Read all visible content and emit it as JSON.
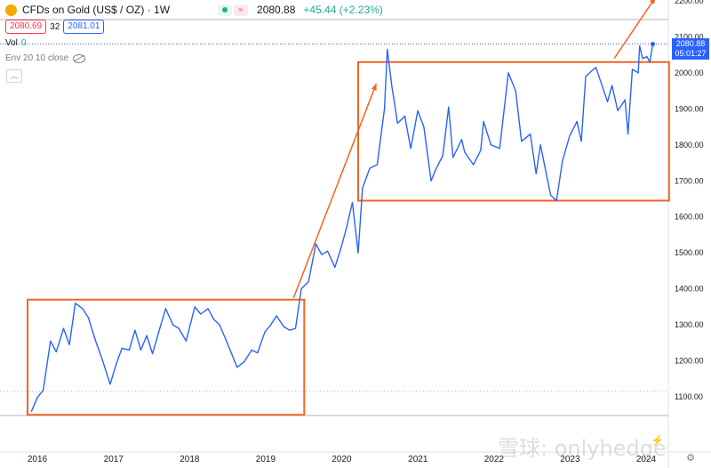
{
  "header": {
    "symbol": "CFDs on Gold (US$ / OZ) · 1W",
    "last_price": "2080.88",
    "change": "+45.44 (+2.23%)",
    "bid": "2080.69",
    "spread": "32",
    "ask": "2081.01",
    "volume_label": "Vol",
    "volume_value": "0",
    "indicator_label": "Env 20 10 close",
    "countdown": "05:01:27",
    "wave_glyph": "≈",
    "collapse_glyph": "︿"
  },
  "icons": {
    "logo": "gold-coin-icon",
    "eye": "eye-off-icon",
    "gear": "gear-icon",
    "flash": "flash-icon"
  },
  "colors": {
    "line": "#2962ff",
    "annotation": "#f26522",
    "up": "#22ab94",
    "down": "#f23645"
  },
  "watermark": "雪球: onlyhedge",
  "chart_data": {
    "type": "line",
    "series": [
      {
        "x": [
          "2015-12-04",
          "2016-01-01",
          "2016-01-29",
          "2016-03-04",
          "2016-04-01",
          "2016-05-06",
          "2016-06-03",
          "2016-07-01",
          "2016-08-05",
          "2016-09-02",
          "2016-10-07",
          "2016-11-04",
          "2016-12-16",
          "2017-01-13",
          "2017-02-10",
          "2017-03-17",
          "2017-04-14",
          "2017-05-12",
          "2017-06-09",
          "2017-07-07",
          "2017-08-11",
          "2017-09-08",
          "2017-10-13",
          "2017-11-10",
          "2017-12-15",
          "2018-01-26",
          "2018-02-23",
          "2018-03-30",
          "2018-04-27",
          "2018-05-25",
          "2018-06-29",
          "2018-08-17",
          "2018-09-21",
          "2018-10-26",
          "2018-11-23",
          "2018-12-28",
          "2019-01-25",
          "2019-02-22",
          "2019-03-29",
          "2019-04-26",
          "2019-05-24",
          "2019-06-21",
          "2019-07-26",
          "2019-08-30",
          "2019-09-27",
          "2019-10-25",
          "2019-11-29",
          "2019-12-27",
          "2020-01-24",
          "2020-02-21",
          "2020-03-20",
          "2020-04-10",
          "2020-05-15",
          "2020-06-19",
          "2020-07-24",
          "2020-08-07",
          "2020-08-28",
          "2020-09-25",
          "2020-10-30",
          "2020-11-27",
          "2020-12-31",
          "2021-01-29",
          "2021-03-05",
          "2021-03-26",
          "2021-04-30",
          "2021-05-28",
          "2021-06-18",
          "2021-07-30",
          "2021-08-13",
          "2021-09-24",
          "2021-10-29",
          "2021-11-12",
          "2021-12-17",
          "2022-01-28",
          "2022-03-11",
          "2022-04-15",
          "2022-05-13",
          "2022-06-24",
          "2022-07-22",
          "2022-08-12",
          "2022-09-30",
          "2022-10-28",
          "2022-11-25",
          "2022-12-30",
          "2023-02-03",
          "2023-02-24",
          "2023-03-17",
          "2023-04-14",
          "2023-05-05",
          "2023-06-30",
          "2023-07-21",
          "2023-08-18",
          "2023-09-22",
          "2023-10-06",
          "2023-10-27",
          "2023-11-24",
          "2023-12-01",
          "2023-12-15",
          "2024-01-05",
          "2024-01-19",
          "2024-02-02"
        ],
        "y": [
          1060,
          1098,
          1118,
          1255,
          1225,
          1290,
          1245,
          1360,
          1345,
          1320,
          1255,
          1210,
          1135,
          1190,
          1235,
          1230,
          1285,
          1230,
          1270,
          1220,
          1290,
          1345,
          1300,
          1290,
          1255,
          1350,
          1330,
          1345,
          1315,
          1300,
          1252,
          1182,
          1198,
          1230,
          1222,
          1280,
          1300,
          1325,
          1295,
          1285,
          1290,
          1400,
          1420,
          1525,
          1495,
          1505,
          1460,
          1510,
          1570,
          1640,
          1500,
          1680,
          1735,
          1745,
          1900,
          2065,
          1965,
          1860,
          1880,
          1790,
          1895,
          1850,
          1700,
          1730,
          1770,
          1905,
          1765,
          1815,
          1780,
          1745,
          1785,
          1865,
          1800,
          1790,
          2000,
          1950,
          1810,
          1830,
          1720,
          1800,
          1660,
          1645,
          1755,
          1825,
          1865,
          1810,
          1990,
          2005,
          2015,
          1920,
          1965,
          1895,
          1925,
          1830,
          2010,
          2000,
          2075,
          2040,
          2045,
          2030,
          2080
        ]
      }
    ],
    "y_ticks": [
      1100,
      1200,
      1300,
      1400,
      1500,
      1600,
      1700,
      1800,
      1900,
      2000,
      2100,
      2200
    ],
    "x_ticks": [
      "2016",
      "2017",
      "2018",
      "2019",
      "2020",
      "2021",
      "2022",
      "2023",
      "2024"
    ],
    "ylim": [
      1040,
      2220
    ],
    "grid": false,
    "annotations": [
      {
        "kind": "box",
        "x0": "2015-11-15",
        "x1": "2019-07-05",
        "y0": 1050,
        "y1": 1370
      },
      {
        "kind": "box",
        "x0": "2020-03-20",
        "x1": "2024-04-20",
        "y0": 1645,
        "y1": 2030
      },
      {
        "kind": "arrow",
        "x0": "2019-05-15",
        "y0": 1375,
        "x1": "2020-06-15",
        "y1": 1970
      },
      {
        "kind": "arrow",
        "x0": "2023-08-01",
        "y0": 2040,
        "x1": "2024-02-15",
        "y1": 2210
      }
    ]
  }
}
